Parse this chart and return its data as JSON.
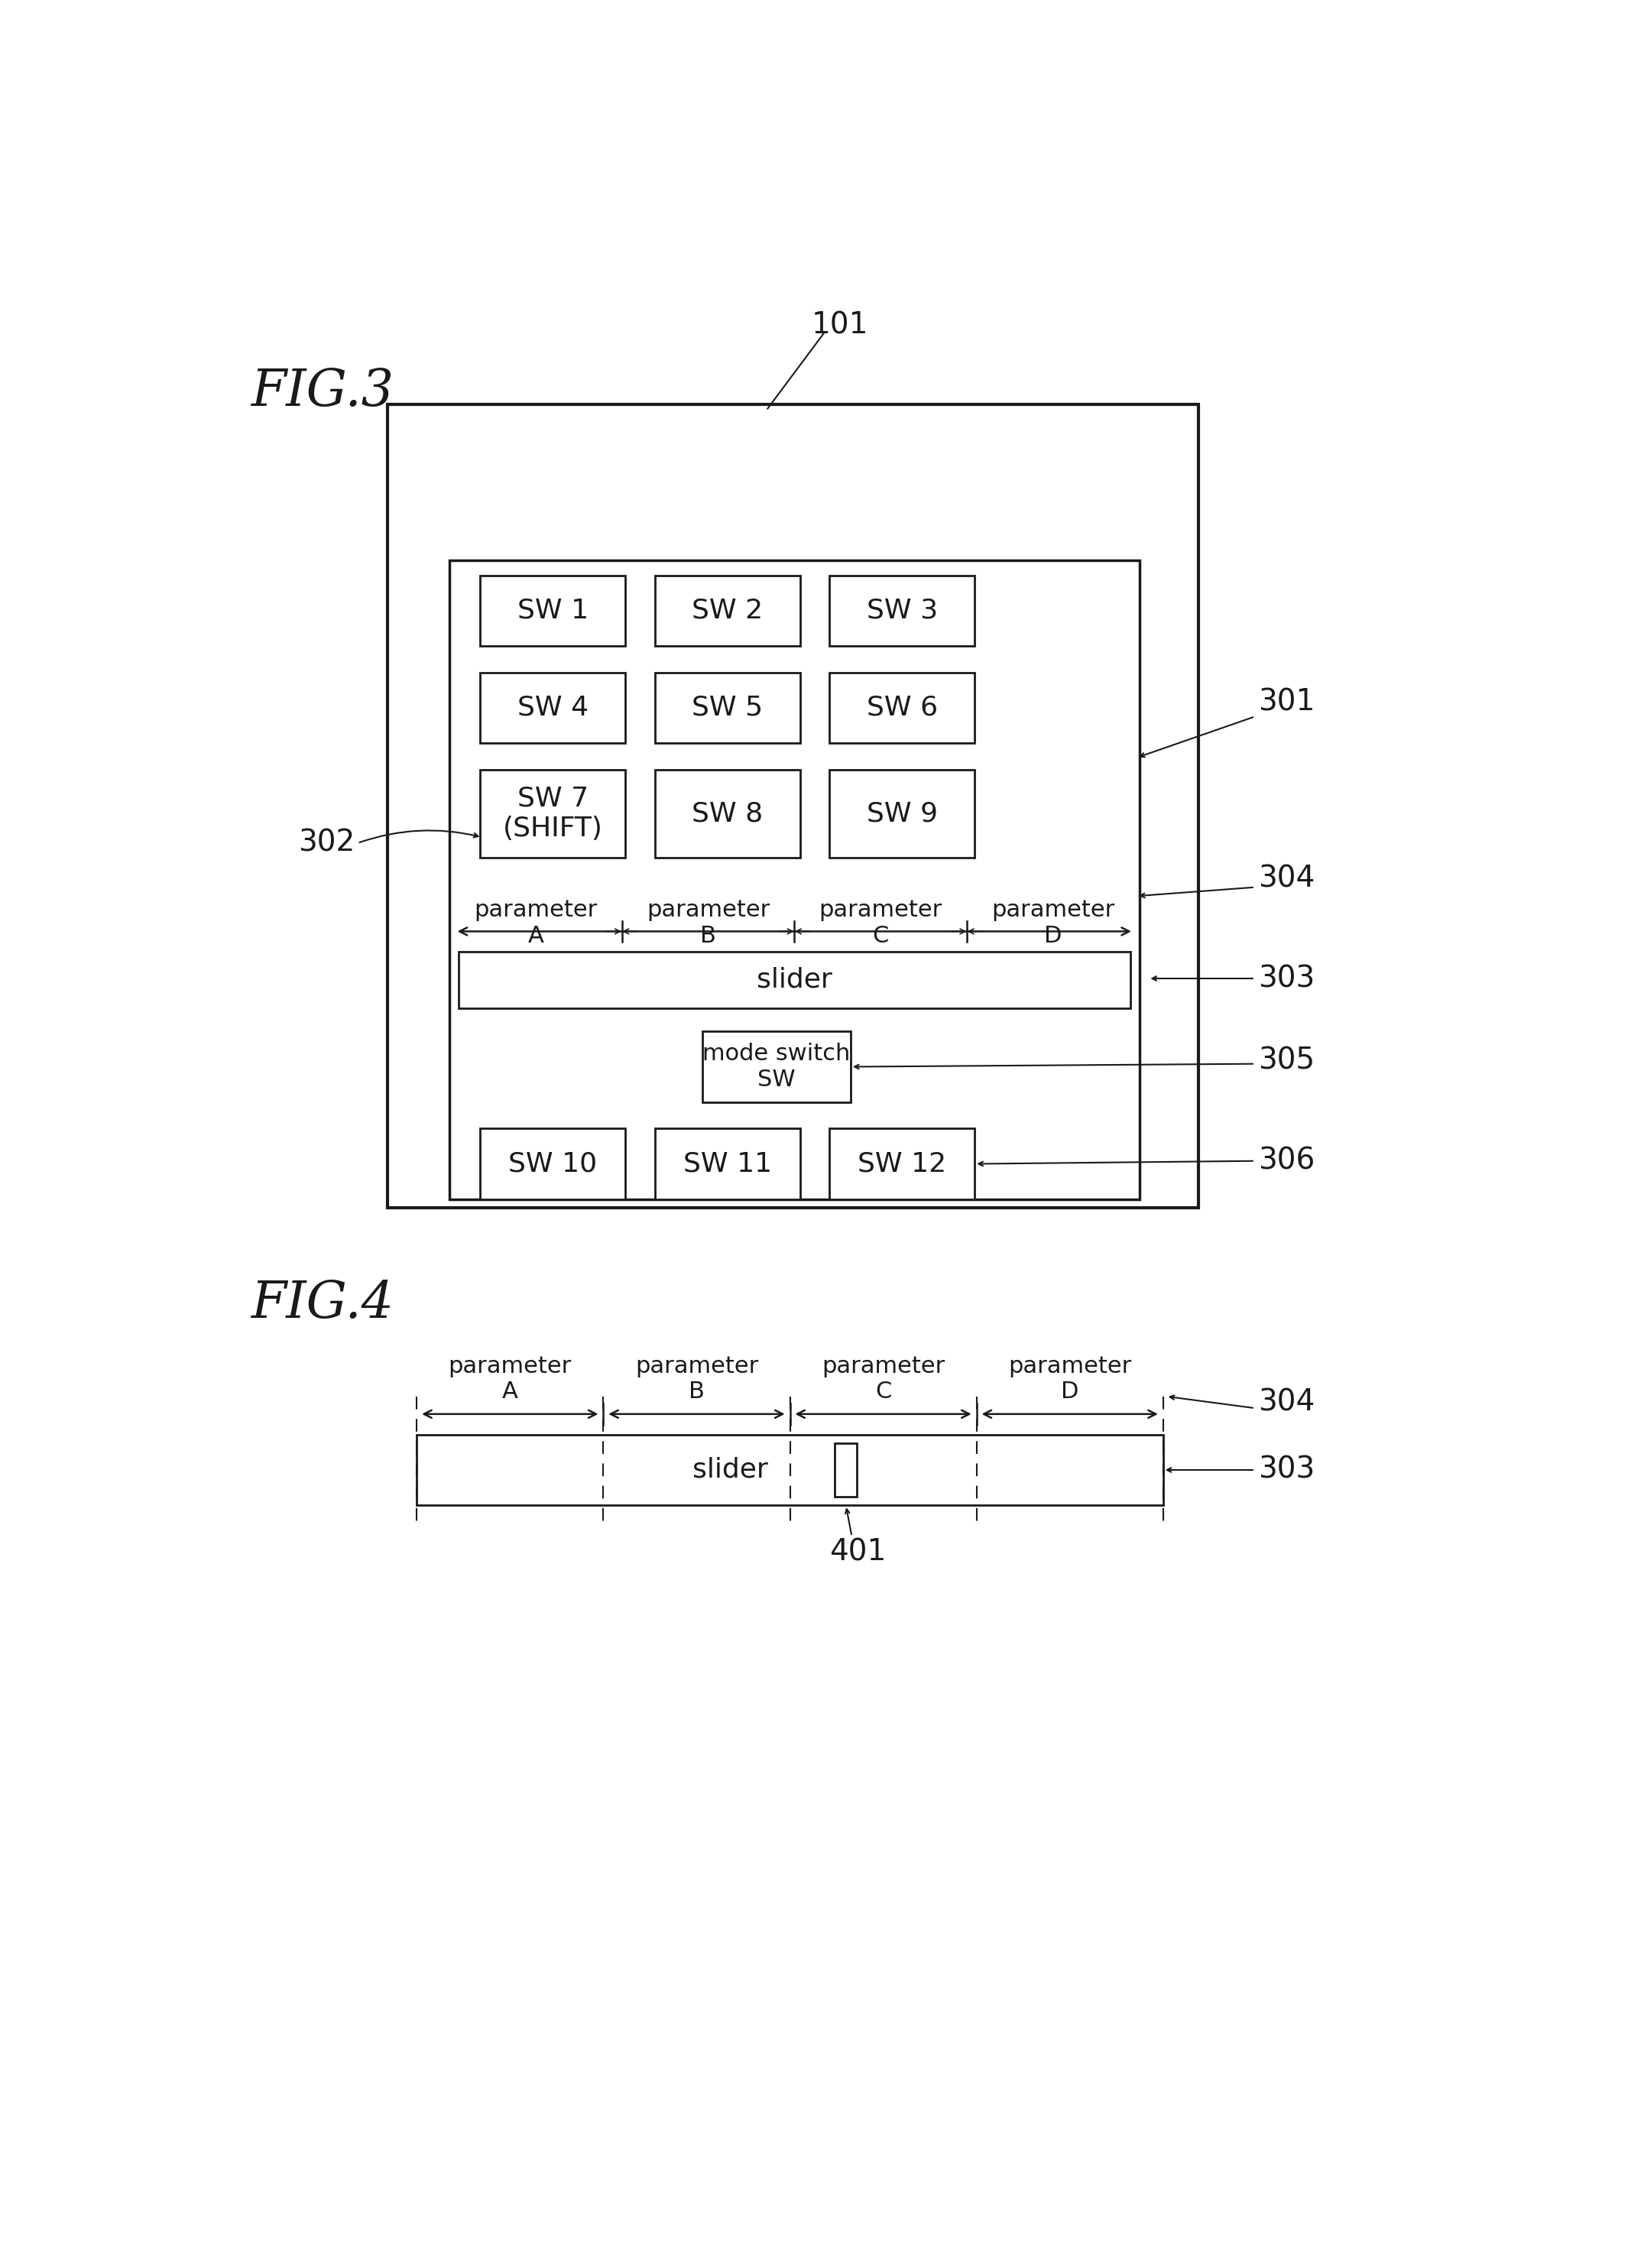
{
  "fig_label": "FIG.3",
  "fig4_label": "FIG.4",
  "bg_color": "#ffffff",
  "line_color": "#1a1a1a",
  "fig3": {
    "ref_101": "101",
    "ref_301": "301",
    "ref_302": "302",
    "ref_303": "303",
    "ref_304": "304",
    "ref_305": "305",
    "ref_306": "306",
    "buttons_row1": [
      "SW 1",
      "SW 2",
      "SW 3"
    ],
    "buttons_row2": [
      "SW 4",
      "SW 5",
      "SW 6"
    ],
    "buttons_row3": [
      "SW 7\n(SHIFT)",
      "SW 8",
      "SW 9"
    ],
    "buttons_row4": [
      "SW 10",
      "SW 11",
      "SW 12"
    ],
    "slider_label": "slider",
    "mode_switch_label": "mode switch\nSW",
    "param_labels": [
      "parameter\nA",
      "parameter\nB",
      "parameter\nC",
      "parameter\nD"
    ]
  },
  "fig4": {
    "ref_304": "304",
    "ref_303": "303",
    "ref_401": "401",
    "slider_label": "slider",
    "param_labels": [
      "parameter\nA",
      "parameter\nB",
      "parameter\nC",
      "parameter\nD"
    ]
  }
}
